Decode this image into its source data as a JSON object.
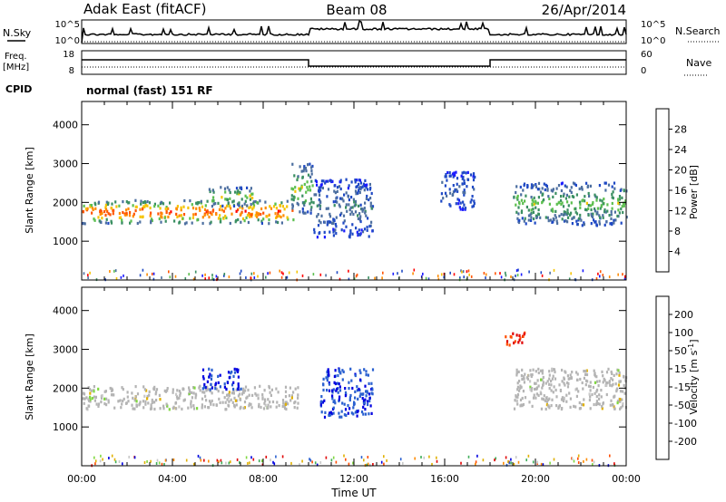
{
  "header": {
    "station": "Adak East (fitACF)",
    "beam": "Beam 08",
    "date": "26/Apr/2014"
  },
  "meta_panel": {
    "nsky_label": "N.Sky",
    "nsearch_label": "N.Search",
    "nsky_ticks": [
      "10^5",
      "10^0"
    ],
    "nsearch_ticks": [
      "10^5",
      "10^0"
    ],
    "freq_label": "Freq.",
    "freq_unit": "[MHz]",
    "freq_ticks": [
      "18",
      "8"
    ],
    "nave_label": "Nave",
    "nave_ticks": [
      "60",
      "0"
    ],
    "cpid_label": "CPID",
    "cpid_text": "normal (fast) 151 RF"
  },
  "colors": {
    "power_scale": [
      "#1a1aff",
      "#1f49c4",
      "#4d6fa0",
      "#3a8f62",
      "#5cbf4f",
      "#f5c400",
      "#ff8c00",
      "#ff5500",
      "#ff0000"
    ],
    "velocity_scale": [
      "#e00000",
      "#ff4d00",
      "#ff8c00",
      "#e0b000",
      "#c8c8c8",
      "#80d840",
      "#3fae5a",
      "#2a60d0",
      "#0000e0"
    ],
    "ground_scatter": "#b4b4b4"
  },
  "chart_data": [
    {
      "type": "heatmap",
      "name_hint": "power",
      "ylabel": "Slant Range [km]",
      "yticks": [
        1000,
        2000,
        3000,
        4000
      ],
      "ylim": [
        0,
        4600
      ],
      "xlim": [
        0,
        24
      ],
      "colorbar_label": "Power [dB]",
      "colorbar_ticks": [
        4,
        8,
        12,
        16,
        20,
        24,
        28
      ],
      "regions": [
        {
          "t0": 0,
          "t1": 9.3,
          "r0": 1450,
          "r1": 2050,
          "peak_db": 26
        },
        {
          "t0": 5.5,
          "t1": 7.5,
          "r0": 1900,
          "r1": 2400,
          "peak_db": 18
        },
        {
          "t0": 9.2,
          "t1": 10.2,
          "r0": 1700,
          "r1": 3000,
          "peak_db": 16
        },
        {
          "t0": 10.2,
          "t1": 12.8,
          "r0": 1100,
          "r1": 2600,
          "peak_db": 8
        },
        {
          "t0": 15.8,
          "t1": 17.3,
          "r0": 1800,
          "r1": 2800,
          "peak_db": 6
        },
        {
          "t0": 19.0,
          "t1": 24.0,
          "r0": 1400,
          "r1": 2500,
          "peak_db": 14
        }
      ]
    },
    {
      "type": "heatmap",
      "name_hint": "velocity",
      "xlabel": "Time UT",
      "ylabel": "Slant Range [km]",
      "yticks": [
        1000,
        2000,
        3000,
        4000
      ],
      "ylim": [
        0,
        4600
      ],
      "xlim": [
        0,
        24
      ],
      "xticks": [
        "00:00",
        "04:00",
        "08:00",
        "12:00",
        "16:00",
        "20:00",
        "00:00"
      ],
      "colorbar_label": "Velocity [m s-1]",
      "colorbar_ticks": [
        200,
        100,
        50,
        15,
        -15,
        -50,
        -100,
        -200
      ],
      "regions": [
        {
          "t0": 0,
          "t1": 9.5,
          "r0": 1450,
          "r1": 2050,
          "velocity": 0
        },
        {
          "t0": 5.3,
          "t1": 7.0,
          "r0": 1950,
          "r1": 2500,
          "velocity": 200
        },
        {
          "t0": 10.5,
          "t1": 12.8,
          "r0": 1250,
          "r1": 2500,
          "velocity": 180
        },
        {
          "t0": 18.5,
          "t1": 19.5,
          "r0": 3100,
          "r1": 3450,
          "velocity": -200
        },
        {
          "t0": 19.0,
          "t1": 24.0,
          "r0": 1450,
          "r1": 2500,
          "velocity": 0
        }
      ]
    }
  ]
}
